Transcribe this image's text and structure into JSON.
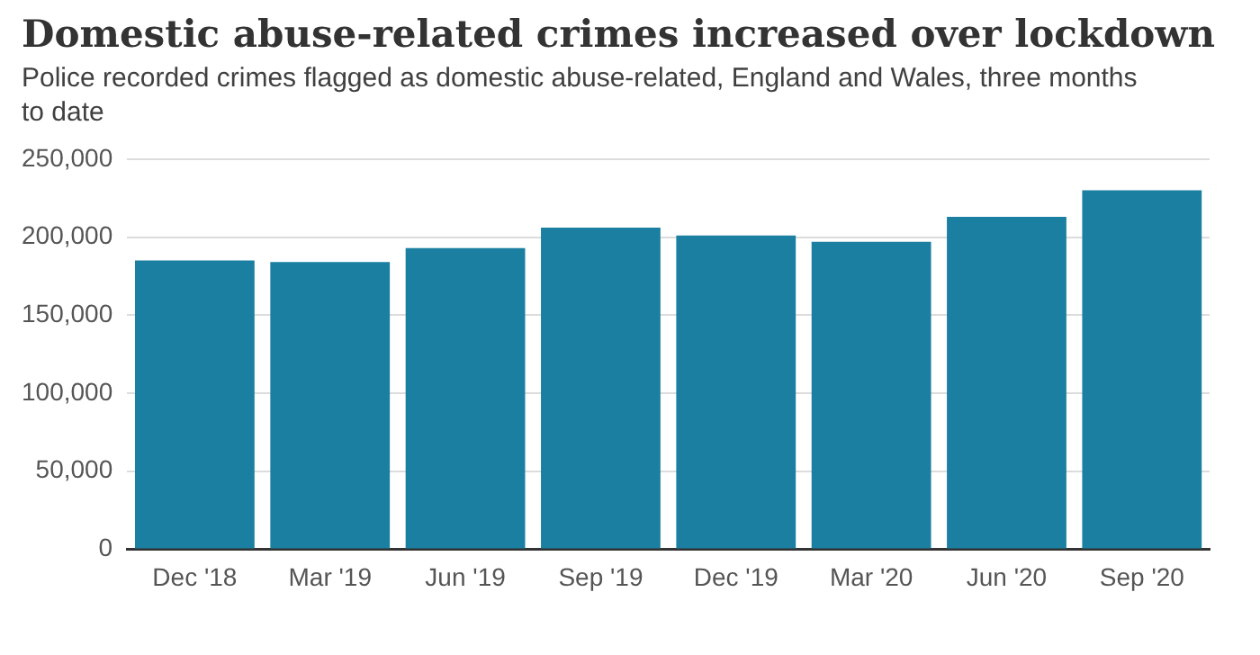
{
  "chart_data": {
    "type": "bar",
    "title": "Domestic abuse-related crimes increased over lockdown",
    "subtitle": "Police recorded crimes flagged as domestic abuse-related, England and Wales, three months to date",
    "categories": [
      "Dec '18",
      "Mar '19",
      "Jun '19",
      "Sep '19",
      "Dec '19",
      "Mar '20",
      "Jun '20",
      "Sep '20"
    ],
    "values": [
      185000,
      184000,
      193000,
      206000,
      201000,
      197000,
      213000,
      230000
    ],
    "color": "#1a7fa0",
    "ylim": [
      0,
      250000
    ],
    "yticks": [
      {
        "value": 0,
        "label": "0"
      },
      {
        "value": 50000,
        "label": "50,000"
      },
      {
        "value": 100000,
        "label": "100,000"
      },
      {
        "value": 150000,
        "label": "150,000"
      },
      {
        "value": 200000,
        "label": "200,000"
      },
      {
        "value": 250000,
        "label": "250,000"
      }
    ],
    "grid": "y",
    "legend": false
  }
}
